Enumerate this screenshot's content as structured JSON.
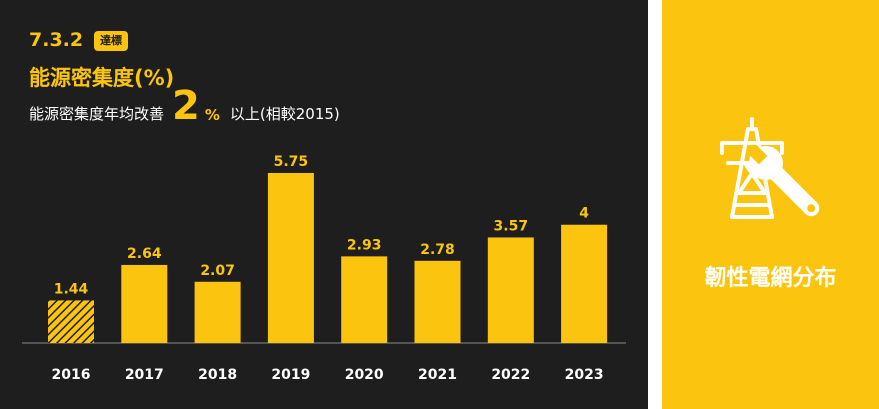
{
  "header": {
    "code": "7.3.2",
    "badge": "達標",
    "title": "能源密集度(%)",
    "target_prefix": "能源密集度年均改善",
    "target_value": "2",
    "target_unit": "%",
    "target_suffix": "以上(相較2015)"
  },
  "side_panel": {
    "label": "韌性電網分布",
    "icon": "power-tower-wrench-icon"
  },
  "colors": {
    "accent": "#fbc50f",
    "background": "#1e1e1e",
    "text": "#ffffff"
  },
  "chart_data": {
    "type": "bar",
    "categories": [
      "2016",
      "2017",
      "2018",
      "2019",
      "2020",
      "2021",
      "2022",
      "2023"
    ],
    "values": [
      1.44,
      2.64,
      2.07,
      5.75,
      2.93,
      2.78,
      3.57,
      4
    ],
    "value_labels": [
      "1.44",
      "2.64",
      "2.07",
      "5.75",
      "2.93",
      "2.78",
      "3.57",
      "4"
    ],
    "hatched_categories": [
      "2016"
    ],
    "ylim": [
      0,
      6
    ],
    "grid": false,
    "legend": "none"
  }
}
